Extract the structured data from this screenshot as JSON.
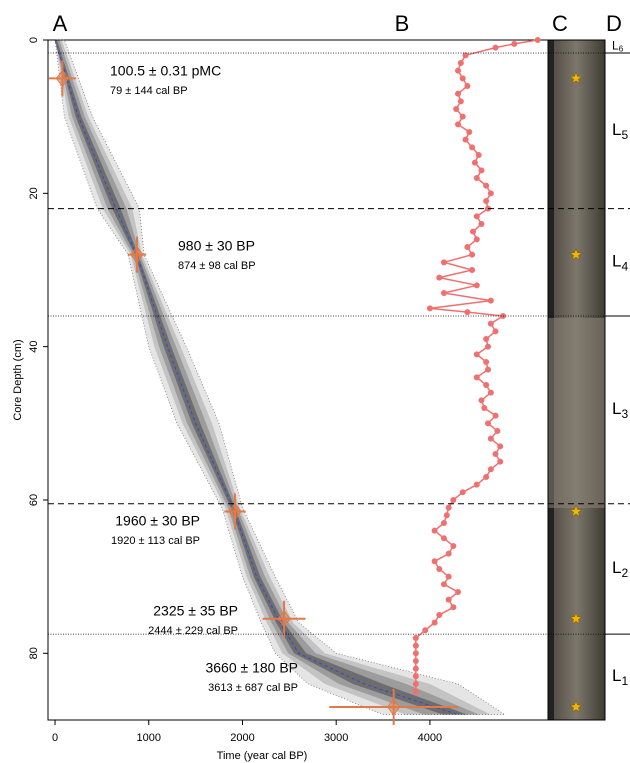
{
  "chart_data": [
    {
      "type": "age-depth",
      "panel_label": "A",
      "x_label": "Time (year cal BP)",
      "y_label": "Core Depth (cm)",
      "xlim": [
        -75,
        5260
      ],
      "ylim": [
        0,
        88.7
      ],
      "xticks": [
        0,
        1000,
        2000,
        3000,
        4000
      ],
      "yticks": [
        0,
        20,
        40,
        60,
        80
      ],
      "median_color": "#3344dd",
      "date_color": "#e07a4a",
      "model": {
        "depth": [
          0,
          10,
          22,
          28,
          40,
          50,
          61,
          70,
          76,
          80,
          84,
          88
        ],
        "median": [
          0,
          250,
          650,
          870,
          1200,
          1500,
          1900,
          2150,
          2400,
          2600,
          3300,
          4300
        ],
        "lower": [
          0,
          100,
          450,
          780,
          1000,
          1300,
          1780,
          2000,
          2200,
          2350,
          2700,
          3500
        ],
        "upper": [
          100,
          400,
          900,
          950,
          1400,
          1750,
          2000,
          2350,
          2600,
          3000,
          4300,
          4800
        ]
      },
      "dates": [
        {
          "depth": 5,
          "age": 79,
          "error": 144,
          "label": "100.5 ± 0.31 pMC",
          "cal_label": "79 ± 144 cal BP"
        },
        {
          "depth": 28,
          "age": 874,
          "error": 98,
          "label": "980 ± 30 BP",
          "cal_label": "874 ± 98 cal BP"
        },
        {
          "depth": 61.5,
          "age": 1920,
          "error": 113,
          "label": "1960 ± 30 BP",
          "cal_label": "1920 ± 113 cal BP"
        },
        {
          "depth": 75.5,
          "age": 2444,
          "error": 229,
          "label": "2325 ± 35 BP",
          "cal_label": "2444 ± 229 cal BP"
        },
        {
          "depth": 87,
          "age": 3613,
          "error": 687,
          "label": "3660 ± 180 BP",
          "cal_label": "3613 ± 687 cal BP"
        }
      ]
    },
    {
      "type": "line",
      "panel_label": "B",
      "color": "#f07070",
      "y": [
        0,
        0.5,
        1,
        2,
        3,
        4,
        5,
        6,
        7,
        8,
        9,
        10,
        11,
        12,
        13,
        14,
        15,
        16,
        17,
        18,
        19,
        20,
        21,
        22,
        23,
        24,
        25,
        26,
        27,
        28,
        29,
        30,
        31,
        32,
        33,
        34,
        35,
        35.5,
        36,
        37,
        38,
        39,
        40,
        41,
        42,
        43,
        44,
        45,
        46,
        47,
        48,
        49,
        50,
        51,
        52,
        53,
        54,
        55,
        56,
        57,
        58,
        59,
        60,
        61,
        62,
        63,
        64,
        65,
        66,
        67,
        68,
        69,
        70,
        71,
        72,
        73,
        74,
        75,
        76,
        77,
        78,
        79,
        80,
        81,
        82,
        83,
        84,
        85
      ],
      "values": [
        5150,
        4900,
        4700,
        4380,
        4330,
        4300,
        4350,
        4400,
        4300,
        4330,
        4280,
        4350,
        4300,
        4420,
        4380,
        4450,
        4520,
        4480,
        4550,
        4500,
        4600,
        4650,
        4600,
        4620,
        4500,
        4550,
        4460,
        4500,
        4400,
        4450,
        4150,
        4450,
        4100,
        4500,
        4150,
        4650,
        4000,
        4400,
        4780,
        4650,
        4700,
        4600,
        4620,
        4500,
        4600,
        4620,
        4500,
        4600,
        4650,
        4550,
        4580,
        4700,
        4620,
        4720,
        4650,
        4750,
        4700,
        4750,
        4650,
        4600,
        4500,
        4350,
        4250,
        4200,
        4180,
        4150,
        4050,
        4150,
        4250,
        4200,
        4050,
        4100,
        4200,
        4150,
        4300,
        4200,
        4250,
        4100,
        4050,
        3950,
        3850,
        3850,
        3850,
        3850,
        3850,
        3850,
        3850,
        3850
      ]
    },
    {
      "type": "image",
      "panel_label": "C",
      "star_color": "#f5b400"
    },
    {
      "type": "units",
      "panel_label": "D",
      "units": [
        {
          "label": "L",
          "sub": "6",
          "top": 0,
          "bottom": 1.7,
          "line": "dotted"
        },
        {
          "label": "L",
          "sub": "5",
          "top": 1.7,
          "bottom": 22,
          "line": "dashed"
        },
        {
          "label": "L",
          "sub": "4",
          "top": 22,
          "bottom": 36,
          "line": "dotted"
        },
        {
          "label": "L",
          "sub": "3",
          "top": 36,
          "bottom": 60.5,
          "line": "dashed"
        },
        {
          "label": "L",
          "sub": "2",
          "top": 60.5,
          "bottom": 77.5,
          "line": "dotted"
        },
        {
          "label": "L",
          "sub": "1",
          "top": 77.5,
          "bottom": 88.7,
          "line": null
        }
      ]
    }
  ]
}
